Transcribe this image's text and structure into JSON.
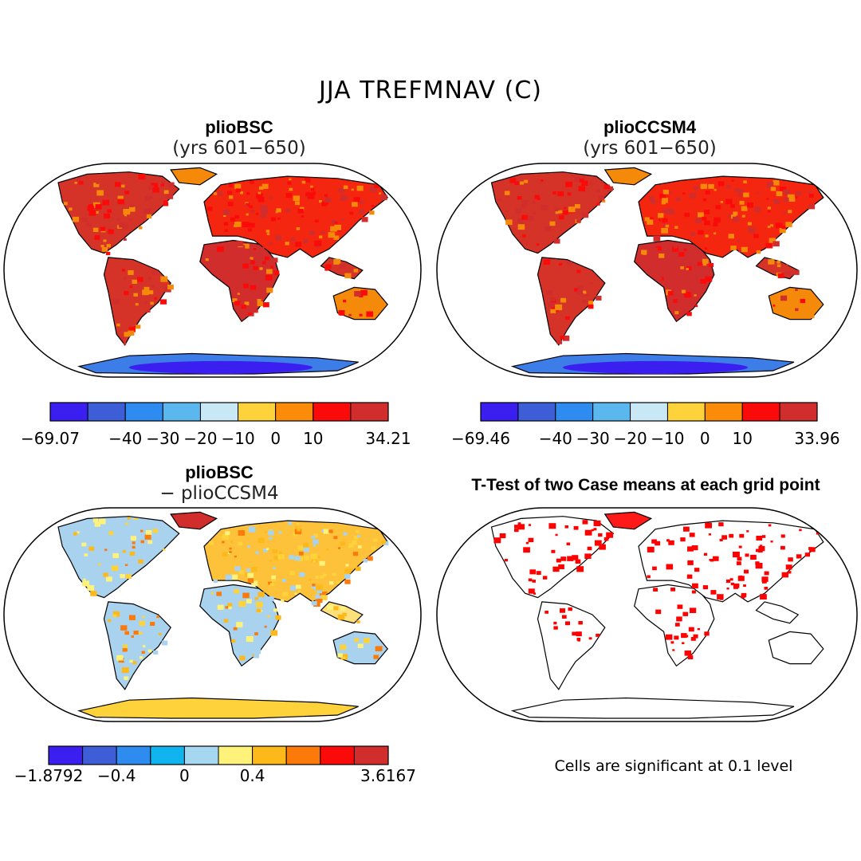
{
  "figure": {
    "title": "JJA TREFMNAV (C)",
    "note": "Cells are significant at 0.1 level"
  },
  "chart_data": [
    {
      "type": "heatmap",
      "title": "plioBSC",
      "subtitle": "(yrs 601−650)",
      "colorbar": {
        "levels": [
          -69.07,
          -50,
          -40,
          -30,
          -20,
          -10,
          0,
          10,
          20,
          34.21
        ],
        "tick_labels": [
          "−69.07",
          "−40",
          "−30",
          "−20",
          "−10",
          "0",
          "10",
          "34.21"
        ],
        "colors": [
          "#3a1ff0",
          "#3d5ed6",
          "#2e8cf0",
          "#5ab8ee",
          "#c8e8f6",
          "#fdd23b",
          "#fb8c0a",
          "#fb0a0a",
          "#d22d2d"
        ]
      }
    },
    {
      "type": "heatmap",
      "title": "plioCCSM4",
      "subtitle": "(yrs 601−650)",
      "colorbar": {
        "levels": [
          -69.46,
          -50,
          -40,
          -30,
          -20,
          -10,
          0,
          10,
          20,
          33.96
        ],
        "tick_labels": [
          "−69.46",
          "−40",
          "−30",
          "−20",
          "−10",
          "0",
          "10",
          "33.96"
        ],
        "colors": [
          "#3a1ff0",
          "#3d5ed6",
          "#2e8cf0",
          "#5ab8ee",
          "#c8e8f6",
          "#fdd23b",
          "#fb8c0a",
          "#fb0a0a",
          "#d22d2d"
        ]
      }
    },
    {
      "type": "heatmap",
      "title": "plioBSC",
      "subtitle": "− plioCCSM4",
      "colorbar": {
        "levels": [
          -1.8792,
          -0.8,
          -0.4,
          -0.2,
          0,
          0.2,
          0.4,
          0.8,
          1.2,
          2,
          3.6167
        ],
        "tick_labels": [
          "−1.8792",
          "−0.4",
          "0",
          "0.4",
          "3.6167"
        ],
        "colors": [
          "#3a1ff0",
          "#3d5ed6",
          "#2e8cf0",
          "#10b5f0",
          "#a6d7f0",
          "#fff27a",
          "#fdb91a",
          "#fb7a0a",
          "#fb0a0a",
          "#d22d2d"
        ]
      }
    },
    {
      "type": "heatmap",
      "title": "T-Test of two Case means at each grid point",
      "significance_color": "#ff0000"
    }
  ]
}
